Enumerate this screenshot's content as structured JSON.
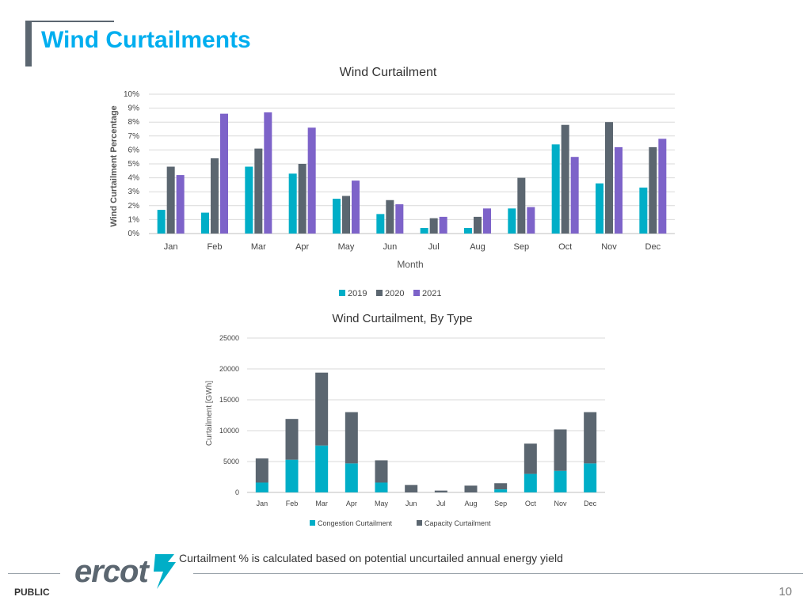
{
  "slide": {
    "title": "Wind Curtailments",
    "footnote": "Curtailment % is calculated based on potential uncurtailed annual energy yield",
    "logo_text": "ercot",
    "classification": "PUBLIC",
    "page_number": "10"
  },
  "chart_data": [
    {
      "type": "bar",
      "title": "Wind Curtailment",
      "xlabel": "Month",
      "ylabel": "Wind Curtailment Percentage",
      "ylim": [
        0,
        10
      ],
      "ytick_labels": [
        "0%",
        "1%",
        "2%",
        "3%",
        "4%",
        "5%",
        "6%",
        "7%",
        "8%",
        "9%",
        "10%"
      ],
      "categories": [
        "Jan",
        "Feb",
        "Mar",
        "Apr",
        "May",
        "Jun",
        "Jul",
        "Aug",
        "Sep",
        "Oct",
        "Nov",
        "Dec"
      ],
      "grid": true,
      "legend_position": "bottom",
      "series": [
        {
          "name": "2019",
          "color": "#00aec7",
          "values": [
            1.7,
            1.5,
            4.8,
            4.3,
            2.5,
            1.4,
            0.4,
            0.4,
            1.8,
            6.4,
            3.6,
            3.3
          ]
        },
        {
          "name": "2020",
          "color": "#5b6670",
          "values": [
            4.8,
            5.4,
            6.1,
            5.0,
            2.7,
            2.4,
            1.1,
            1.2,
            4.0,
            7.8,
            8.0,
            6.2
          ]
        },
        {
          "name": "2021",
          "color": "#7d63c9",
          "values": [
            4.2,
            8.6,
            8.7,
            7.6,
            3.8,
            2.1,
            1.2,
            1.8,
            1.9,
            5.5,
            6.2,
            6.8
          ]
        }
      ]
    },
    {
      "type": "bar",
      "stacked": true,
      "title": "Wind Curtailment, By Type",
      "xlabel": "",
      "ylabel": "Curtailment [GWh]",
      "ylim": [
        0,
        25000
      ],
      "yticks": [
        0,
        5000,
        10000,
        15000,
        20000,
        25000
      ],
      "ytick_labels": [
        "0",
        "5000",
        "10000",
        "15000",
        "20000",
        "25000"
      ],
      "categories": [
        "Jan",
        "Feb",
        "Mar",
        "Apr",
        "May",
        "Jun",
        "Jul",
        "Aug",
        "Sep",
        "Oct",
        "Nov",
        "Dec"
      ],
      "grid": true,
      "legend_position": "bottom",
      "series": [
        {
          "name": "Congestion Curtailment",
          "color": "#00aec7",
          "values": [
            1600,
            5300,
            7600,
            4700,
            1600,
            0,
            0,
            0,
            500,
            3000,
            3500,
            4700
          ]
        },
        {
          "name": "Capacity Curtailment",
          "color": "#5b6670",
          "values": [
            3900,
            6600,
            11800,
            8300,
            3600,
            1200,
            300,
            1100,
            1000,
            4900,
            6700,
            8300
          ]
        }
      ]
    }
  ]
}
